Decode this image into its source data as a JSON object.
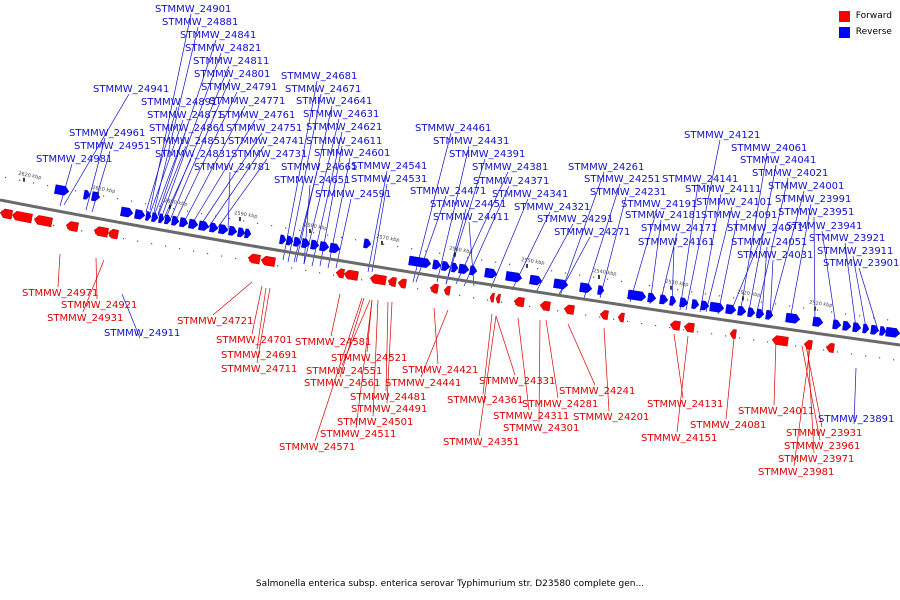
{
  "legend": {
    "forward": {
      "label": "Forward",
      "color": "#ff0000"
    },
    "reverse": {
      "label": "Reverse",
      "color": "#0000ff"
    }
  },
  "caption": "Salmonella enterica subsp. enterica serovar Typhimurium str. D23580 complete gen...",
  "coordinates": [
    "2620 kbp",
    "2610 kbp",
    "2600 kbp",
    "2590 kbp",
    "2580 kbp",
    "2570 kbp",
    "2560 kbp",
    "2550 kbp",
    "2540 kbp",
    "2530 kbp",
    "2520 kbp",
    "2510 kbp"
  ],
  "reverse_labels": [
    "STMMW_24901",
    "STMMW_24881",
    "STMMW_24841",
    "STMMW_24821",
    "STMMW_24811",
    "STMMW_24801",
    "STMMW_24941",
    "STMMW_24791",
    "STMMW_24891",
    "STMMW_24771",
    "STMMW_24871",
    "STMMW_24761",
    "STMMW_24861",
    "STMMW_24751",
    "STMMW_24961",
    "STMMW_24851",
    "STMMW_24741",
    "STMMW_24951",
    "STMMW_24831",
    "STMMW_24731",
    "STMMW_24981",
    "STMMW_24781",
    "STMMW_24681",
    "STMMW_24671",
    "STMMW_24641",
    "STMMW_24631",
    "STMMW_24621",
    "STMMW_24611",
    "STMMW_24601",
    "STMMW_24661",
    "STMMW_24541",
    "STMMW_24651",
    "STMMW_24531",
    "STMMW_24591",
    "STMMW_24461",
    "STMMW_24431",
    "STMMW_24391",
    "STMMW_24381",
    "STMMW_24371",
    "STMMW_24471",
    "STMMW_24341",
    "STMMW_24451",
    "STMMW_24321",
    "STMMW_24411",
    "STMMW_24261",
    "STMMW_24251",
    "STMMW_24231",
    "STMMW_24191",
    "STMMW_24291",
    "STMMW_24181",
    "STMMW_24271",
    "STMMW_24171",
    "STMMW_24161",
    "STMMW_24121",
    "STMMW_24061",
    "STMMW_24041",
    "STMMW_24141",
    "STMMW_24021",
    "STMMW_24111",
    "STMMW_24001",
    "STMMW_24101",
    "STMMW_23991",
    "STMMW_24091",
    "STMMW_23951",
    "STMMW_24071",
    "STMMW_23941",
    "STMMW_24051",
    "STMMW_23921",
    "STMMW_24031",
    "STMMW_23911",
    "STMMW_23901",
    "STMMW_24911",
    "STMMW_23891"
  ],
  "forward_labels": [
    "STMMW_24971",
    "STMMW_24921",
    "STMMW_24931",
    "STMMW_24721",
    "STMMW_24701",
    "STMMW_24691",
    "STMMW_24711",
    "STMMW_24581",
    "STMMW_24521",
    "STMMW_24551",
    "STMMW_24561",
    "STMMW_24481",
    "STMMW_24491",
    "STMMW_24501",
    "STMMW_24511",
    "STMMW_24571",
    "STMMW_24421",
    "STMMW_24441",
    "STMMW_24331",
    "STMMW_24361",
    "STMMW_24311",
    "STMMW_24301",
    "STMMW_24351",
    "STMMW_24281",
    "STMMW_24241",
    "STMMW_24201",
    "STMMW_24131",
    "STMMW_24151",
    "STMMW_24081",
    "STMMW_24011",
    "STMMW_23931",
    "STMMW_23961",
    "STMMW_23971",
    "STMMW_23981"
  ]
}
